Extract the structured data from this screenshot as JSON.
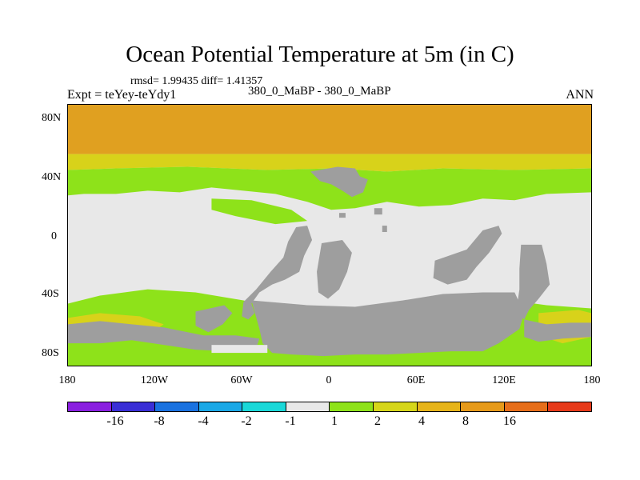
{
  "title": "Ocean Potential Temperature at 5m (in C)",
  "stats": "rmsd= 1.99435 diff= 1.41357",
  "experiment": "Expt = teYey-teYdy1",
  "comparison": "380_0_MaBP - 380_0_MaBP",
  "season": "ANN",
  "lat_ticks": [
    "80N",
    "40N",
    "0",
    "40S",
    "80S"
  ],
  "lon_ticks": [
    "180",
    "120W",
    "60W",
    "0",
    "60E",
    "120E",
    "180"
  ],
  "colorbar": {
    "colors": [
      "#8a1fe0",
      "#3a2fd6",
      "#1a72e0",
      "#1aa8e6",
      "#1ad8d8",
      "#e8e8e8",
      "#8ee21a",
      "#d6d61a",
      "#e6b41a",
      "#e69a1a",
      "#e66e1a",
      "#e63a1a"
    ],
    "labels": [
      "-16",
      "-8",
      "-4",
      "-2",
      "-1",
      "1",
      "2",
      "4",
      "8",
      "16"
    ]
  },
  "map": {
    "land_color": "#9e9e9e",
    "bands": {
      "orange": "#e0a020",
      "yellow": "#d8d21a",
      "green": "#8ee21a",
      "white": "#e8e8e8"
    }
  }
}
